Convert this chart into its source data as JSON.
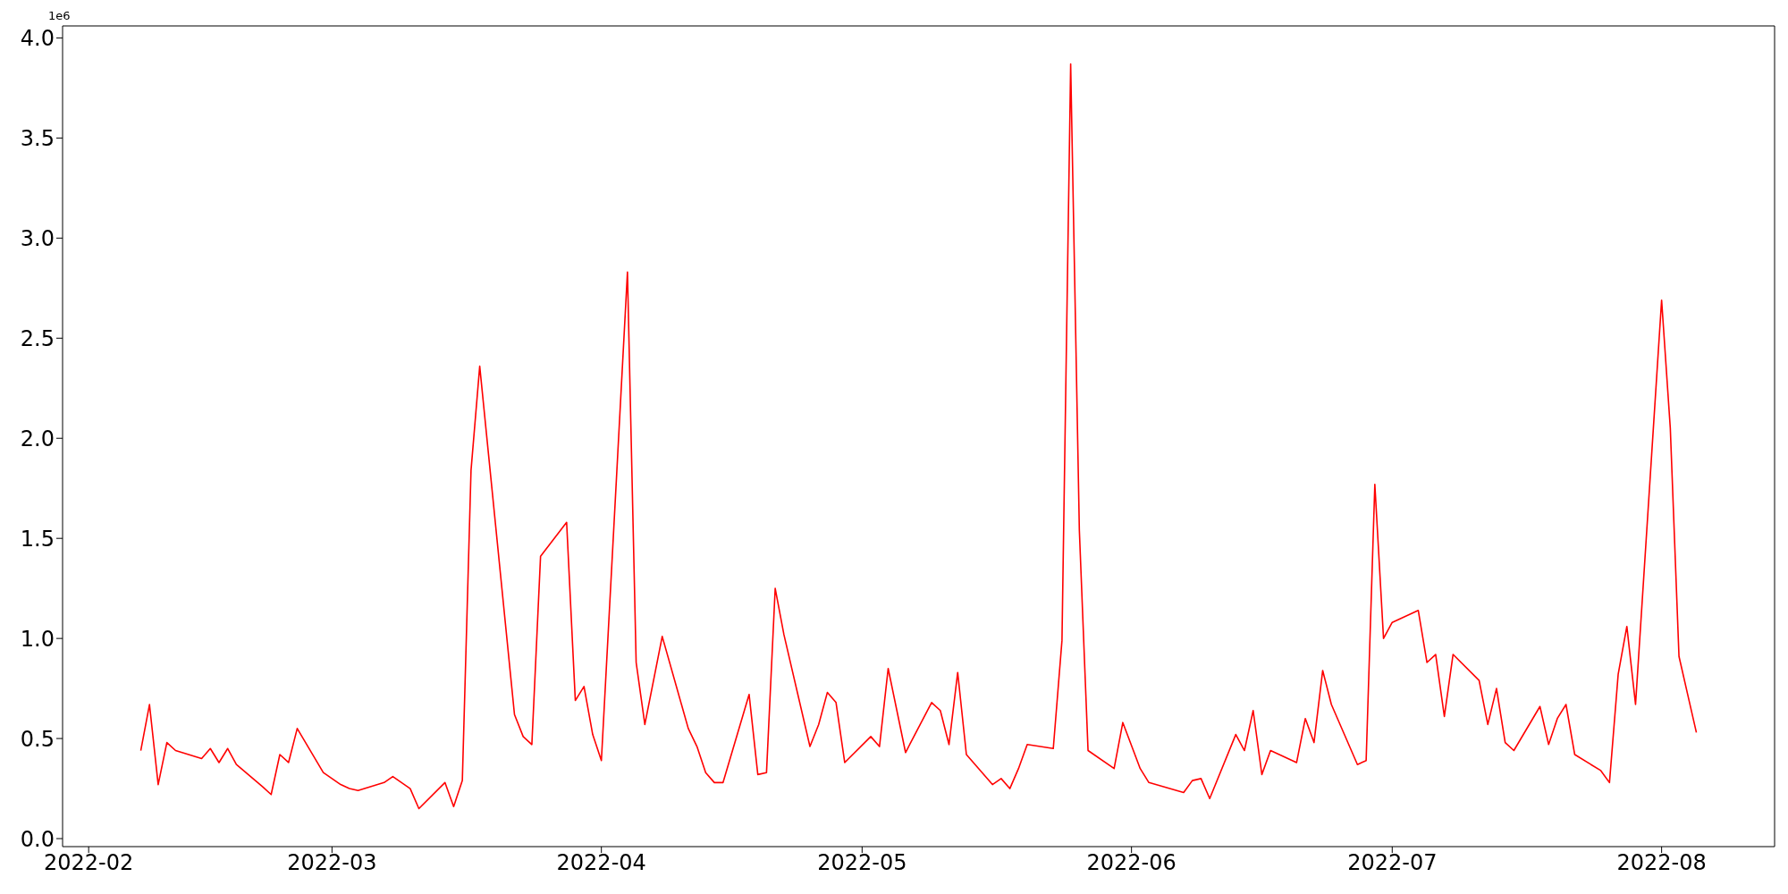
{
  "chart_data": {
    "type": "line",
    "annotations": [
      "1e6"
    ],
    "x": [
      "2022-02-07",
      "2022-02-08",
      "2022-02-09",
      "2022-02-10",
      "2022-02-11",
      "2022-02-14",
      "2022-02-15",
      "2022-02-16",
      "2022-02-17",
      "2022-02-18",
      "2022-02-21",
      "2022-02-22",
      "2022-02-23",
      "2022-02-24",
      "2022-02-25",
      "2022-02-28",
      "2022-03-02",
      "2022-03-03",
      "2022-03-04",
      "2022-03-07",
      "2022-03-08",
      "2022-03-10",
      "2022-03-11",
      "2022-03-14",
      "2022-03-15",
      "2022-03-16",
      "2022-03-17",
      "2022-03-18",
      "2022-03-22",
      "2022-03-23",
      "2022-03-24",
      "2022-03-25",
      "2022-03-28",
      "2022-03-29",
      "2022-03-30",
      "2022-03-31",
      "2022-04-01",
      "2022-04-04",
      "2022-04-05",
      "2022-04-06",
      "2022-04-08",
      "2022-04-11",
      "2022-04-12",
      "2022-04-13",
      "2022-04-14",
      "2022-04-15",
      "2022-04-18",
      "2022-04-19",
      "2022-04-20",
      "2022-04-21",
      "2022-04-22",
      "2022-04-25",
      "2022-04-26",
      "2022-04-27",
      "2022-04-28",
      "2022-04-29",
      "2022-05-02",
      "2022-05-03",
      "2022-05-04",
      "2022-05-06",
      "2022-05-09",
      "2022-05-10",
      "2022-05-11",
      "2022-05-12",
      "2022-05-13",
      "2022-05-16",
      "2022-05-17",
      "2022-05-18",
      "2022-05-19",
      "2022-05-20",
      "2022-05-23",
      "2022-05-24",
      "2022-05-25",
      "2022-05-26",
      "2022-05-27",
      "2022-05-30",
      "2022-05-31",
      "2022-06-02",
      "2022-06-03",
      "2022-06-07",
      "2022-06-08",
      "2022-06-09",
      "2022-06-10",
      "2022-06-13",
      "2022-06-14",
      "2022-06-15",
      "2022-06-16",
      "2022-06-17",
      "2022-06-20",
      "2022-06-21",
      "2022-06-22",
      "2022-06-23",
      "2022-06-24",
      "2022-06-27",
      "2022-06-28",
      "2022-06-29",
      "2022-06-30",
      "2022-07-01",
      "2022-07-04",
      "2022-07-05",
      "2022-07-06",
      "2022-07-07",
      "2022-07-08",
      "2022-07-11",
      "2022-07-12",
      "2022-07-13",
      "2022-07-14",
      "2022-07-15",
      "2022-07-18",
      "2022-07-19",
      "2022-07-20",
      "2022-07-21",
      "2022-07-22",
      "2022-07-25",
      "2022-07-26",
      "2022-07-27",
      "2022-07-28",
      "2022-07-29",
      "2022-08-01",
      "2022-08-02",
      "2022-08-03",
      "2022-08-04",
      "2022-08-05"
    ],
    "series": [
      {
        "color": "#ff0000",
        "values": [
          0.44,
          0.67,
          0.27,
          0.48,
          0.44,
          0.4,
          0.45,
          0.38,
          0.45,
          0.37,
          0.26,
          0.22,
          0.42,
          0.38,
          0.55,
          0.33,
          0.27,
          0.25,
          0.24,
          0.28,
          0.31,
          0.25,
          0.15,
          0.28,
          0.16,
          0.29,
          1.84,
          2.36,
          0.62,
          0.51,
          0.47,
          1.41,
          1.58,
          0.69,
          0.76,
          0.52,
          0.39,
          2.83,
          0.88,
          0.57,
          1.01,
          0.55,
          0.46,
          0.33,
          0.28,
          0.28,
          0.72,
          0.32,
          0.33,
          1.25,
          1.02,
          0.46,
          0.57,
          0.73,
          0.68,
          0.38,
          0.51,
          0.46,
          0.85,
          0.43,
          0.68,
          0.64,
          0.47,
          0.83,
          0.42,
          0.27,
          0.3,
          0.25,
          0.35,
          0.47,
          0.45,
          0.99,
          3.87,
          1.54,
          0.44,
          0.35,
          0.58,
          0.35,
          0.28,
          0.23,
          0.29,
          0.3,
          0.2,
          0.52,
          0.44,
          0.64,
          0.32,
          0.44,
          0.38,
          0.6,
          0.48,
          0.84,
          0.67,
          0.37,
          0.39,
          1.77,
          1.0,
          1.08,
          1.14,
          0.88,
          0.92,
          0.61,
          0.92,
          0.79,
          0.57,
          0.75,
          0.48,
          0.44,
          0.66,
          0.47,
          0.6,
          0.67,
          0.42,
          0.34,
          0.28,
          0.82,
          1.06,
          0.67,
          2.69,
          2.05,
          0.91,
          0.72,
          0.53
        ]
      }
    ],
    "xlim": [
      "2022-01-29",
      "2022-08-14"
    ],
    "xticks": [
      {
        "value": "2022-02-01",
        "label": "2022-02"
      },
      {
        "value": "2022-03-01",
        "label": "2022-03"
      },
      {
        "value": "2022-04-01",
        "label": "2022-04"
      },
      {
        "value": "2022-05-01",
        "label": "2022-05"
      },
      {
        "value": "2022-06-01",
        "label": "2022-06"
      },
      {
        "value": "2022-07-01",
        "label": "2022-07"
      },
      {
        "value": "2022-08-01",
        "label": "2022-08"
      }
    ],
    "ylim": [
      -0.04,
      4.06
    ],
    "yticks": [
      {
        "value": 0,
        "label": "0.0"
      },
      0.5,
      {
        "value": 1,
        "label": "1.0"
      },
      1.5,
      {
        "value": 2,
        "label": "2.0"
      },
      2.5,
      {
        "value": 3,
        "label": "3.0"
      },
      3.5,
      {
        "value": 4,
        "label": "4.0"
      }
    ],
    "line_style": "solid",
    "marker": "none"
  }
}
